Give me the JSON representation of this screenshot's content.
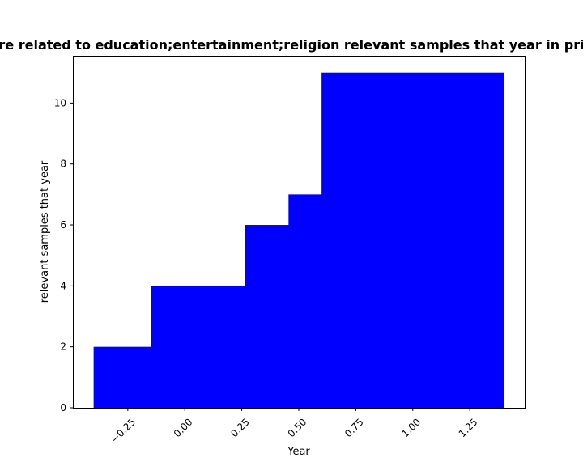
{
  "chart_data": {
    "type": "bar",
    "title": "re related to education;entertainment;religion relevant samples that year in pri",
    "xlabel": "Year",
    "ylabel": "relevant samples that year",
    "xlim": [
      -0.491,
      1.491
    ],
    "ylim": [
      0,
      11.55
    ],
    "x_ticks": [
      -0.25,
      0.0,
      0.25,
      0.5,
      0.75,
      1.0,
      1.25
    ],
    "x_tick_labels": [
      "−0.25",
      "0.00",
      "0.25",
      "0.50",
      "0.75",
      "1.00",
      "1.25"
    ],
    "y_ticks": [
      0,
      2,
      4,
      6,
      8,
      10
    ],
    "y_tick_labels": [
      "0",
      "2",
      "4",
      "6",
      "8",
      "10"
    ],
    "bar_color": "#0000ff",
    "bars": [
      {
        "x_start": -0.4,
        "x_end": -0.15,
        "value": 2
      },
      {
        "x_start": -0.15,
        "x_end": 0.265,
        "value": 4
      },
      {
        "x_start": 0.265,
        "x_end": 0.455,
        "value": 6
      },
      {
        "x_start": 0.455,
        "x_end": 0.6,
        "value": 7
      },
      {
        "x_start": 0.6,
        "x_end": 1.4,
        "value": 11
      }
    ],
    "grid": false,
    "legend": "none"
  }
}
